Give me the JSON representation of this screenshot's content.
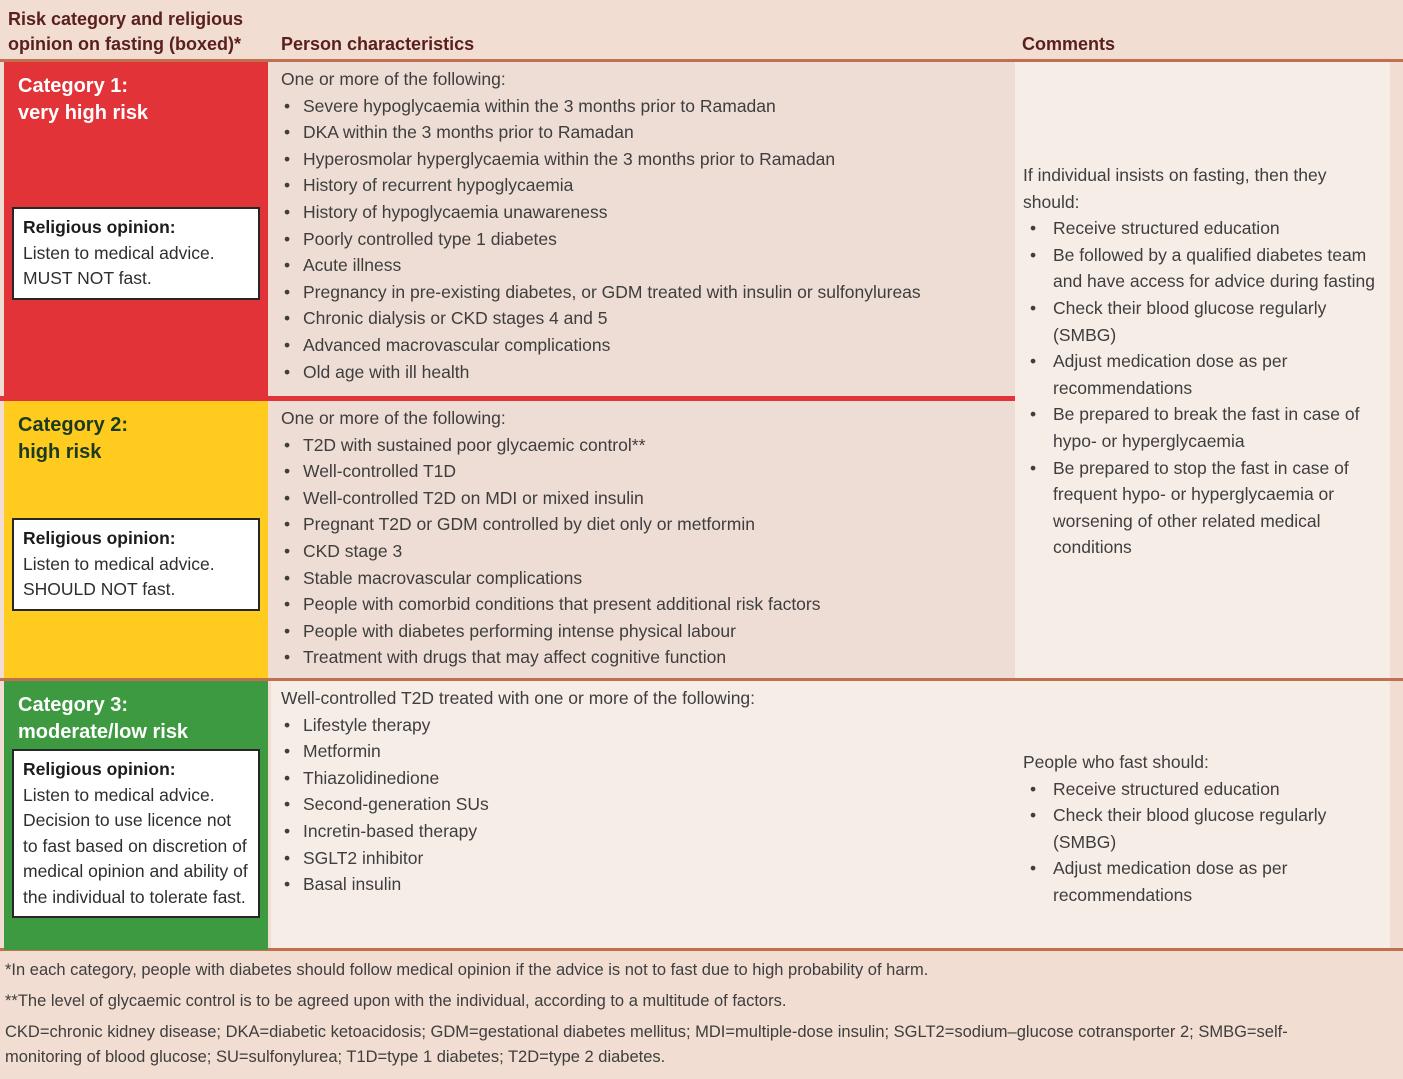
{
  "colors": {
    "page_bg": "#f1ddd1",
    "cell_dark": "#eeddd4",
    "cell_light": "#f7ede7",
    "category1_red": "#e23338",
    "category2_yellow": "#ffcb1f",
    "category3_green": "#3e9a40",
    "divider_sienna": "#c0704f",
    "header_text": "#5a201e"
  },
  "headers": {
    "col1": "Risk category and religious opinion on fasting (boxed)*",
    "col2": "Person characteristics",
    "col3": "Comments"
  },
  "categories": [
    {
      "title_line1": "Category 1:",
      "title_line2": "very high risk",
      "religious_opinion_label": "Religious opinion:",
      "religious_opinion_text": "Listen to medical advice. MUST NOT fast.",
      "characteristics_intro": "One or more of the following:",
      "characteristics": [
        "Severe hypoglycaemia within the 3 months prior to Ramadan",
        "DKA within the 3 months prior to Ramadan",
        "Hyperosmolar hyperglycaemia within the 3 months prior to Ramadan",
        "History of recurrent hypoglycaemia",
        "History of hypoglycaemia unawareness",
        "Poorly controlled type 1 diabetes",
        "Acute illness",
        "Pregnancy in pre-existing diabetes, or GDM treated with insulin or sulfonylureas",
        "Chronic dialysis or CKD stages 4 and 5",
        "Advanced macrovascular complications",
        "Old age with ill health"
      ]
    },
    {
      "title_line1": "Category 2:",
      "title_line2": "high risk",
      "religious_opinion_label": "Religious opinion:",
      "religious_opinion_text": "Listen to medical advice. SHOULD NOT fast.",
      "characteristics_intro": "One or more of the following:",
      "characteristics": [
        "T2D with sustained poor glycaemic control**",
        "Well-controlled T1D",
        "Well-controlled T2D on MDI or mixed insulin",
        "Pregnant T2D or GDM controlled by diet only or metformin",
        "CKD stage 3",
        "Stable macrovascular complications",
        "People with comorbid conditions that present additional risk factors",
        "People with diabetes performing intense physical labour",
        "Treatment with drugs that may affect cognitive function"
      ]
    },
    {
      "title_line1": "Category 3:",
      "title_line2": "moderate/low risk",
      "religious_opinion_label": "Religious opinion:",
      "religious_opinion_text": "Listen to medical advice. Decision to use licence not to fast based on discretion of medical opinion and ability of the individual to tolerate fast.",
      "characteristics_intro": "Well-controlled T2D treated with one or more of the following:",
      "characteristics": [
        "Lifestyle therapy",
        "Metformin",
        "Thiazolidinedione",
        "Second-generation SUs",
        "Incretin-based therapy",
        "SGLT2 inhibitor",
        "Basal insulin"
      ]
    }
  ],
  "comments_cat1_2": {
    "intro": "If individual insists on fasting, then they should:",
    "bullets": [
      "Receive structured education",
      "Be followed by a qualified diabetes team and have access for advice during fasting",
      "Check their blood glucose regularly (SMBG)",
      "Adjust medication dose as per recommendations",
      "Be prepared to break the fast in case of hypo- or hyperglycaemia",
      "Be prepared to stop the fast in case of frequent hypo- or hyperglycaemia or worsening of other related medical conditions"
    ]
  },
  "comments_cat3": {
    "intro": "People who fast should:",
    "bullets": [
      "Receive structured education",
      "Check their blood glucose regularly (SMBG)",
      "Adjust medication dose as per recommendations"
    ]
  },
  "footnotes": [
    "*In each category, people with diabetes should follow medical opinion if the advice is not to fast due to high probability of harm.",
    "**The level of glycaemic control is to be agreed upon with the individual, according to a multitude of factors.",
    "CKD=chronic kidney disease; DKA=diabetic ketoacidosis; GDM=gestational diabetes mellitus; MDI=multiple-dose insulin; SGLT2=sodium–glucose cotransporter 2; SMBG=self-monitoring of blood glucose; SU=sulfonylurea; T1D=type 1 diabetes; T2D=type 2 diabetes."
  ]
}
